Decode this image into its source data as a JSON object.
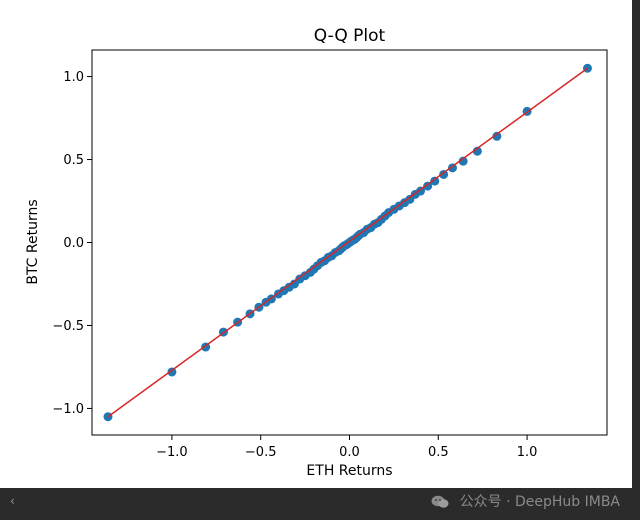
{
  "chart_data": {
    "type": "scatter",
    "title": "Q-Q Plot",
    "xlabel": "ETH Returns",
    "ylabel": "BTC Returns",
    "xlim": [
      -1.45,
      1.45
    ],
    "ylim": [
      -1.16,
      1.16
    ],
    "x_ticks": [
      -1.0,
      -0.5,
      0.0,
      0.5,
      1.0
    ],
    "x_tick_labels": [
      "−1.0",
      "−0.5",
      "0.0",
      "0.5",
      "1.0"
    ],
    "y_ticks": [
      -1.0,
      -0.5,
      0.0,
      0.5,
      1.0
    ],
    "y_tick_labels": [
      "−1.0",
      "−0.5",
      "0.0",
      "0.5",
      "1.0"
    ],
    "grid": false,
    "point_color": "#1f77b4",
    "line_color": "#d62728",
    "reference_line": {
      "x": [
        -1.36,
        1.34
      ],
      "y": [
        -1.05,
        1.05
      ]
    },
    "points": {
      "x": [
        -1.36,
        -1.0,
        -0.81,
        -0.71,
        -0.63,
        -0.56,
        -0.51,
        -0.47,
        -0.44,
        -0.4,
        -0.37,
        -0.34,
        -0.31,
        -0.28,
        -0.25,
        -0.22,
        -0.2,
        -0.18,
        -0.16,
        -0.14,
        -0.12,
        -0.1,
        -0.08,
        -0.06,
        -0.05,
        -0.04,
        -0.03,
        -0.02,
        -0.01,
        0.0,
        0.01,
        0.02,
        0.03,
        0.04,
        0.05,
        0.06,
        0.08,
        0.1,
        0.12,
        0.14,
        0.16,
        0.18,
        0.2,
        0.22,
        0.25,
        0.28,
        0.31,
        0.34,
        0.37,
        0.4,
        0.44,
        0.48,
        0.53,
        0.58,
        0.64,
        0.72,
        0.83,
        1.0,
        1.34
      ],
      "y": [
        -1.05,
        -0.78,
        -0.63,
        -0.54,
        -0.48,
        -0.43,
        -0.39,
        -0.36,
        -0.34,
        -0.31,
        -0.29,
        -0.27,
        -0.25,
        -0.22,
        -0.2,
        -0.18,
        -0.16,
        -0.14,
        -0.12,
        -0.11,
        -0.09,
        -0.08,
        -0.06,
        -0.05,
        -0.04,
        -0.03,
        -0.02,
        -0.015,
        -0.008,
        0.0,
        0.008,
        0.015,
        0.02,
        0.03,
        0.04,
        0.05,
        0.06,
        0.08,
        0.09,
        0.11,
        0.12,
        0.14,
        0.16,
        0.18,
        0.2,
        0.22,
        0.24,
        0.26,
        0.29,
        0.31,
        0.34,
        0.37,
        0.41,
        0.45,
        0.49,
        0.55,
        0.64,
        0.79,
        1.05
      ]
    }
  },
  "watermark": {
    "icon": "wechat-icon",
    "text": "公众号 · DeepHub IMBA"
  },
  "scroll_arrow": "‹"
}
